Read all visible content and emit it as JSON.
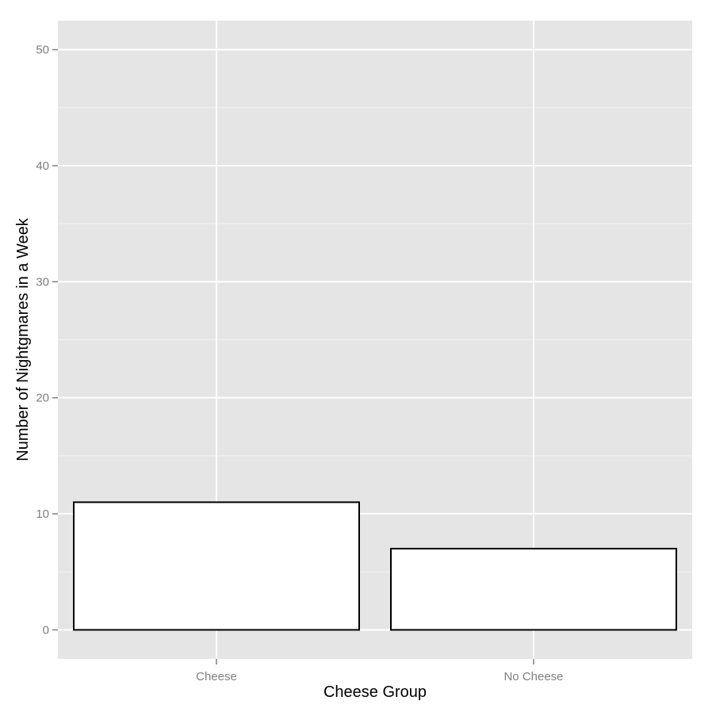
{
  "chart_data": {
    "type": "bar",
    "title": "",
    "xlabel": "Cheese Group",
    "ylabel": "Number of Nightgmares in a Week",
    "categories": [
      "Cheese",
      "No Cheese"
    ],
    "values": [
      11,
      7
    ],
    "ylim": [
      -2.5,
      52.5
    ],
    "yticks": [
      0,
      10,
      20,
      30,
      40,
      50
    ],
    "grid": true,
    "legend": "none",
    "colors": {
      "panel_background": "#e5e5e5",
      "grid_major": "#ffffff",
      "grid_minor": "#f2f2f2",
      "bar_fill": "#ffffff",
      "bar_outline": "#000000",
      "tick_text": "#7f7f7f",
      "tick_mark": "#7f7f7f"
    }
  }
}
